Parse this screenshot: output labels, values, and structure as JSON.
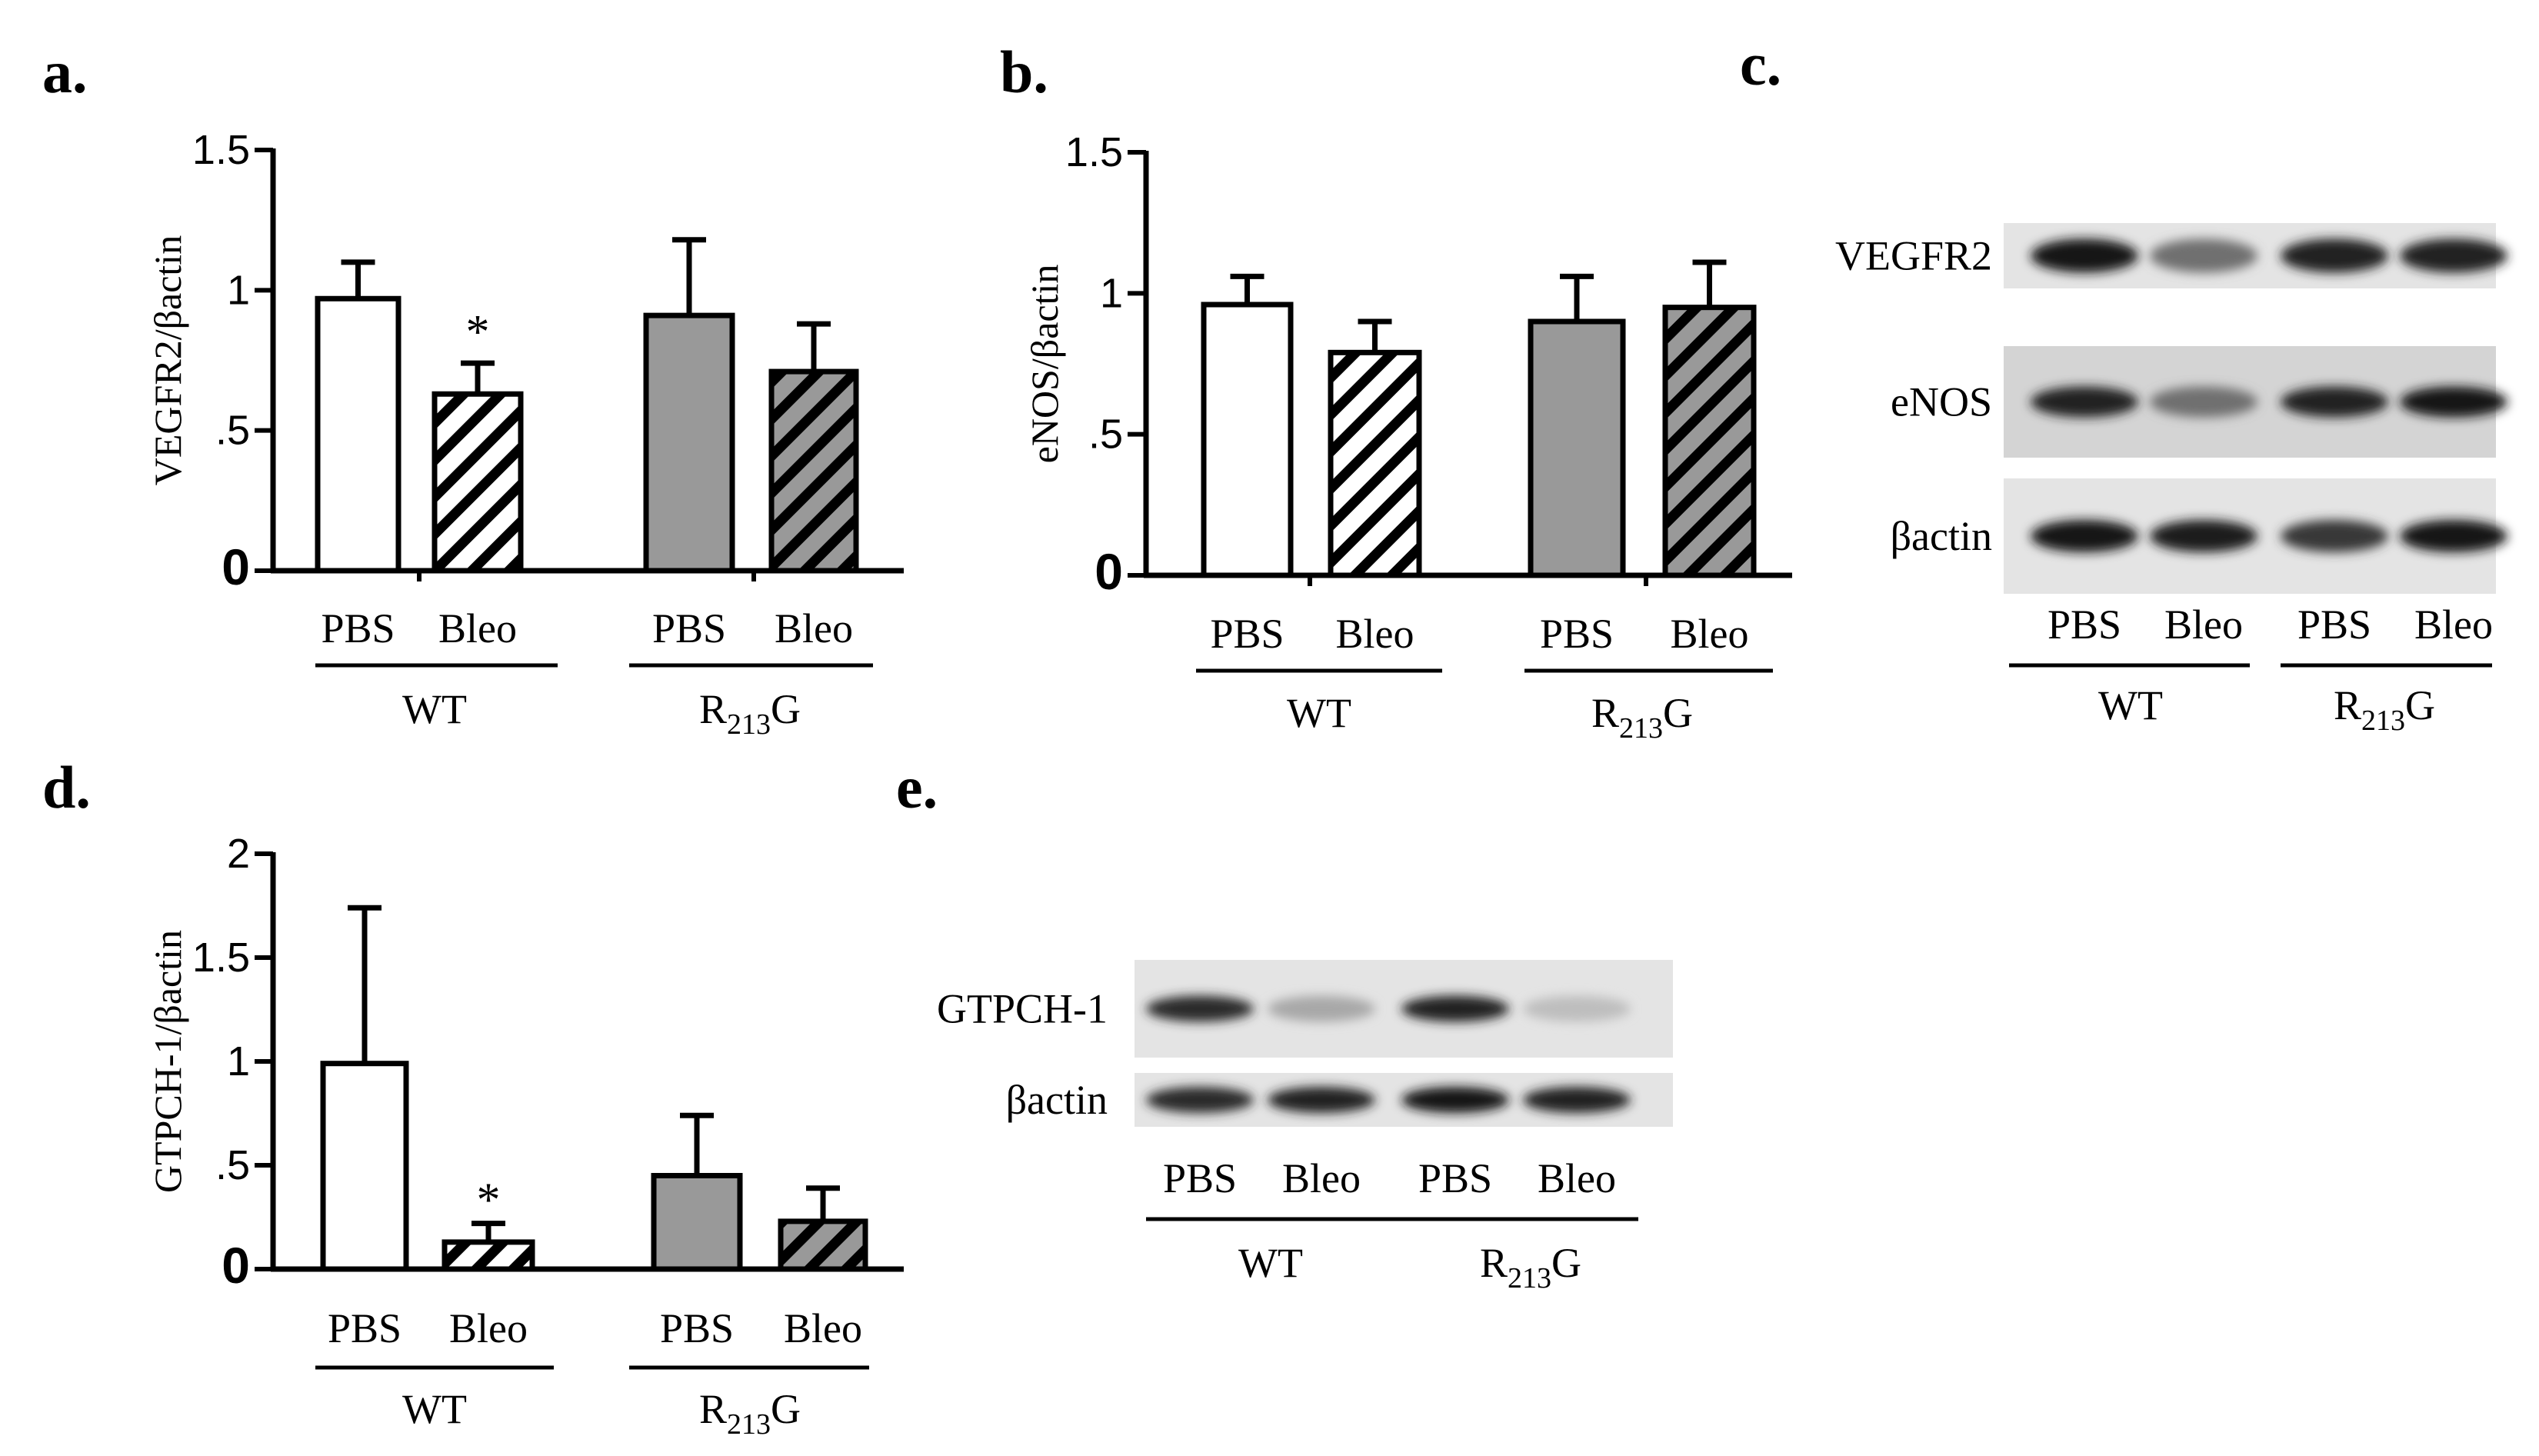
{
  "panels": {
    "a": "a.",
    "b": "b.",
    "c": "c.",
    "d": "d.",
    "e": "e."
  },
  "groups": {
    "wt": "WT",
    "mut_prefix": "R",
    "mut_sub": "213",
    "mut_suffix": "G"
  },
  "conditions": [
    "PBS",
    "Bleo",
    "PBS",
    "Bleo"
  ],
  "colors": {
    "axis": "#000000",
    "pbs_wt": "#ffffff",
    "bleo_wt_hatch": "#ffffff",
    "pbs_mut": "#999999",
    "bleo_mut_hatch": "#999999",
    "hatch_stroke": "#000000"
  },
  "chart_data": [
    {
      "panel": "a",
      "type": "bar",
      "ylabel": "VEGFR2/βactin",
      "ylim": [
        0,
        1.5
      ],
      "yticks": [
        "0",
        ".5",
        "1",
        "1.5"
      ],
      "categories": [
        "PBS",
        "Bleo",
        "PBS",
        "Bleo"
      ],
      "groups": [
        "WT",
        "R213G"
      ],
      "values": [
        0.97,
        0.63,
        0.91,
        0.71
      ],
      "errors": [
        0.13,
        0.11,
        0.27,
        0.17
      ],
      "significance": [
        "",
        "*",
        "",
        ""
      ]
    },
    {
      "panel": "b",
      "type": "bar",
      "ylabel": "eNOS/βactin",
      "ylim": [
        0,
        1.5
      ],
      "yticks": [
        "0",
        ".5",
        "1",
        "1.5"
      ],
      "categories": [
        "PBS",
        "Bleo",
        "PBS",
        "Bleo"
      ],
      "groups": [
        "WT",
        "R213G"
      ],
      "values": [
        0.96,
        0.79,
        0.9,
        0.95
      ],
      "errors": [
        0.1,
        0.11,
        0.16,
        0.16
      ],
      "significance": [
        "",
        "",
        "",
        ""
      ]
    },
    {
      "panel": "d",
      "type": "bar",
      "ylabel": "GTPCH-1/βactin",
      "ylim": [
        0,
        2
      ],
      "yticks": [
        "0",
        ".5",
        "1",
        "1.5",
        "2"
      ],
      "categories": [
        "PBS",
        "Bleo",
        "PBS",
        "Bleo"
      ],
      "groups": [
        "WT",
        "R213G"
      ],
      "values": [
        0.99,
        0.13,
        0.45,
        0.23
      ],
      "errors": [
        0.75,
        0.09,
        0.29,
        0.16
      ],
      "significance": [
        "",
        "*",
        "",
        ""
      ]
    }
  ],
  "blots": {
    "c": {
      "rows": [
        "VEGFR2",
        "eNOS",
        "βactin"
      ],
      "intensities": [
        [
          0.95,
          0.55,
          0.9,
          0.9
        ],
        [
          0.9,
          0.55,
          0.9,
          0.95
        ],
        [
          0.95,
          0.92,
          0.8,
          0.95
        ]
      ],
      "lanes": [
        "PBS",
        "Bleo",
        "PBS",
        "Bleo"
      ]
    },
    "e": {
      "rows": [
        "GTPCH-1",
        "βactin"
      ],
      "intensities": [
        [
          0.85,
          0.3,
          0.9,
          0.2
        ],
        [
          0.85,
          0.9,
          0.95,
          0.9
        ]
      ],
      "lanes": [
        "PBS",
        "Bleo",
        "PBS",
        "Bleo"
      ]
    }
  }
}
